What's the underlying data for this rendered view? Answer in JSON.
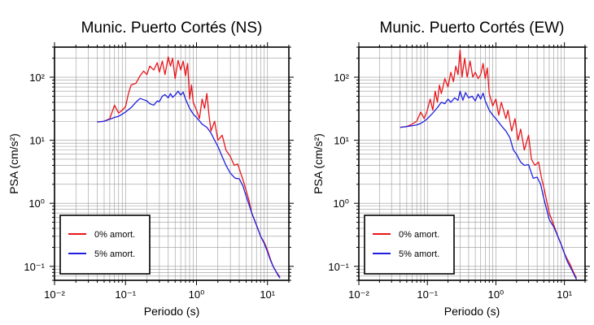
{
  "chart_data": [
    {
      "type": "line",
      "title": "Munic. Puerto Cortés (NS)",
      "xlabel": "Periodo (s)",
      "ylabel": "PSA (cm/s²)",
      "xscale": "log",
      "yscale": "log",
      "xlim": [
        0.01,
        20
      ],
      "ylim": [
        0.06,
        300
      ],
      "grid": true,
      "legend_position": "bottom-left",
      "x_tick_labels": [
        "10⁻²",
        "10⁻¹",
        "10⁰",
        "10¹"
      ],
      "y_tick_labels": [
        "10⁻¹",
        "10⁰",
        "10¹",
        "10²"
      ],
      "series": [
        {
          "name": "0% amort.",
          "color": "#e8161b",
          "points": [
            [
              0.04,
              19.5
            ],
            [
              0.05,
              20
            ],
            [
              0.06,
              22
            ],
            [
              0.07,
              36
            ],
            [
              0.08,
              27
            ],
            [
              0.09,
              30
            ],
            [
              0.1,
              34
            ],
            [
              0.11,
              55
            ],
            [
              0.12,
              75
            ],
            [
              0.14,
              80
            ],
            [
              0.16,
              105
            ],
            [
              0.18,
              125
            ],
            [
              0.2,
              110
            ],
            [
              0.22,
              150
            ],
            [
              0.25,
              130
            ],
            [
              0.28,
              170
            ],
            [
              0.3,
              120
            ],
            [
              0.33,
              180
            ],
            [
              0.36,
              110
            ],
            [
              0.4,
              210
            ],
            [
              0.43,
              150
            ],
            [
              0.46,
              200
            ],
            [
              0.5,
              95
            ],
            [
              0.55,
              185
            ],
            [
              0.6,
              130
            ],
            [
              0.65,
              180
            ],
            [
              0.7,
              105
            ],
            [
              0.75,
              165
            ],
            [
              0.8,
              45
            ],
            [
              0.85,
              75
            ],
            [
              0.9,
              40
            ],
            [
              1,
              30
            ],
            [
              1.1,
              22
            ],
            [
              1.2,
              45
            ],
            [
              1.3,
              32
            ],
            [
              1.4,
              55
            ],
            [
              1.5,
              25
            ],
            [
              1.6,
              14
            ],
            [
              1.8,
              20
            ],
            [
              2,
              10
            ],
            [
              2.3,
              12
            ],
            [
              2.6,
              7
            ],
            [
              3,
              5.5
            ],
            [
              3.4,
              4
            ],
            [
              3.8,
              4.2
            ],
            [
              4.2,
              3
            ],
            [
              4.6,
              2.2
            ],
            [
              5,
              1.6
            ],
            [
              5.5,
              1.1
            ],
            [
              6,
              0.7
            ],
            [
              7,
              0.45
            ],
            [
              8,
              0.3
            ],
            [
              9,
              0.24
            ],
            [
              10,
              0.18
            ],
            [
              11,
              0.13
            ],
            [
              12,
              0.1
            ],
            [
              13,
              0.085
            ],
            [
              14,
              0.075
            ],
            [
              15,
              0.068
            ]
          ]
        },
        {
          "name": "5% amort.",
          "color": "#1f1fe0",
          "points": [
            [
              0.04,
              19.5
            ],
            [
              0.05,
              20
            ],
            [
              0.06,
              21.5
            ],
            [
              0.07,
              23
            ],
            [
              0.08,
              24
            ],
            [
              0.09,
              26
            ],
            [
              0.1,
              28
            ],
            [
              0.12,
              33
            ],
            [
              0.14,
              40
            ],
            [
              0.16,
              46
            ],
            [
              0.18,
              44
            ],
            [
              0.2,
              42
            ],
            [
              0.22,
              38
            ],
            [
              0.25,
              36
            ],
            [
              0.28,
              42
            ],
            [
              0.3,
              41
            ],
            [
              0.33,
              50
            ],
            [
              0.36,
              53
            ],
            [
              0.4,
              47
            ],
            [
              0.43,
              55
            ],
            [
              0.46,
              48
            ],
            [
              0.5,
              52
            ],
            [
              0.55,
              60
            ],
            [
              0.6,
              52
            ],
            [
              0.65,
              58
            ],
            [
              0.7,
              45
            ],
            [
              0.8,
              32
            ],
            [
              0.9,
              26
            ],
            [
              1,
              23
            ],
            [
              1.2,
              18
            ],
            [
              1.4,
              16
            ],
            [
              1.6,
              13
            ],
            [
              1.8,
              10
            ],
            [
              2,
              8
            ],
            [
              2.3,
              5.5
            ],
            [
              2.6,
              4
            ],
            [
              3,
              3
            ],
            [
              3.5,
              2.5
            ],
            [
              4,
              2.45
            ],
            [
              4.5,
              1.9
            ],
            [
              5,
              1.3
            ],
            [
              5.5,
              0.95
            ],
            [
              6,
              0.7
            ],
            [
              7,
              0.45
            ],
            [
              8,
              0.3
            ],
            [
              9,
              0.23
            ],
            [
              10,
              0.17
            ],
            [
              11,
              0.125
            ],
            [
              12,
              0.1
            ],
            [
              13,
              0.085
            ],
            [
              14,
              0.073
            ],
            [
              15,
              0.065
            ]
          ]
        }
      ]
    },
    {
      "type": "line",
      "title": "Munic. Puerto Cortés (EW)",
      "xlabel": "Periodo (s)",
      "ylabel": "PSA (cm/s²)",
      "xscale": "log",
      "yscale": "log",
      "xlim": [
        0.01,
        20
      ],
      "ylim": [
        0.06,
        300
      ],
      "grid": true,
      "legend_position": "bottom-left",
      "x_tick_labels": [
        "10⁻²",
        "10⁻¹",
        "10⁰",
        "10¹"
      ],
      "y_tick_labels": [
        "10⁻¹",
        "10⁰",
        "10¹",
        "10²"
      ],
      "series": [
        {
          "name": "0% amort.",
          "color": "#e8161b",
          "points": [
            [
              0.04,
              16
            ],
            [
              0.05,
              16.5
            ],
            [
              0.06,
              18
            ],
            [
              0.07,
              20
            ],
            [
              0.08,
              28
            ],
            [
              0.09,
              22
            ],
            [
              0.1,
              30
            ],
            [
              0.11,
              45
            ],
            [
              0.12,
              30
            ],
            [
              0.13,
              60
            ],
            [
              0.14,
              40
            ],
            [
              0.15,
              75
            ],
            [
              0.16,
              55
            ],
            [
              0.18,
              95
            ],
            [
              0.2,
              70
            ],
            [
              0.22,
              120
            ],
            [
              0.24,
              85
            ],
            [
              0.26,
              150
            ],
            [
              0.28,
              110
            ],
            [
              0.3,
              270
            ],
            [
              0.32,
              100
            ],
            [
              0.35,
              200
            ],
            [
              0.38,
              100
            ],
            [
              0.42,
              180
            ],
            [
              0.46,
              100
            ],
            [
              0.5,
              120
            ],
            [
              0.55,
              95
            ],
            [
              0.6,
              110
            ],
            [
              0.65,
              165
            ],
            [
              0.7,
              95
            ],
            [
              0.75,
              140
            ],
            [
              0.8,
              55
            ],
            [
              0.9,
              35
            ],
            [
              1,
              45
            ],
            [
              1.1,
              25
            ],
            [
              1.2,
              40
            ],
            [
              1.4,
              22
            ],
            [
              1.5,
              30
            ],
            [
              1.7,
              14
            ],
            [
              1.9,
              22
            ],
            [
              2.1,
              10
            ],
            [
              2.3,
              15
            ],
            [
              2.6,
              7
            ],
            [
              3,
              12
            ],
            [
              3.3,
              5
            ],
            [
              3.7,
              4
            ],
            [
              4.2,
              4.5
            ],
            [
              4.6,
              2.6
            ],
            [
              5,
              1.8
            ],
            [
              5.5,
              1.1
            ],
            [
              6,
              0.7
            ],
            [
              7,
              0.45
            ],
            [
              8,
              0.3
            ],
            [
              9,
              0.22
            ],
            [
              10,
              0.16
            ],
            [
              11,
              0.13
            ],
            [
              12,
              0.11
            ],
            [
              13,
              0.09
            ],
            [
              14,
              0.075
            ],
            [
              15,
              0.066
            ]
          ]
        },
        {
          "name": "5% amort.",
          "color": "#1f1fe0",
          "points": [
            [
              0.04,
              16
            ],
            [
              0.05,
              16.5
            ],
            [
              0.06,
              17
            ],
            [
              0.07,
              17.5
            ],
            [
              0.08,
              18.5
            ],
            [
              0.09,
              20
            ],
            [
              0.1,
              22
            ],
            [
              0.12,
              27
            ],
            [
              0.14,
              33
            ],
            [
              0.16,
              40
            ],
            [
              0.18,
              38
            ],
            [
              0.2,
              45
            ],
            [
              0.22,
              40
            ],
            [
              0.25,
              47
            ],
            [
              0.28,
              43
            ],
            [
              0.3,
              60
            ],
            [
              0.33,
              43
            ],
            [
              0.36,
              57
            ],
            [
              0.4,
              47
            ],
            [
              0.45,
              50
            ],
            [
              0.5,
              42
            ],
            [
              0.55,
              54
            ],
            [
              0.6,
              45
            ],
            [
              0.65,
              56
            ],
            [
              0.7,
              42
            ],
            [
              0.8,
              30
            ],
            [
              0.9,
              25
            ],
            [
              1,
              22
            ],
            [
              1.2,
              17
            ],
            [
              1.4,
              14
            ],
            [
              1.6,
              11
            ],
            [
              1.8,
              7
            ],
            [
              2,
              6
            ],
            [
              2.3,
              4.5
            ],
            [
              2.6,
              4
            ],
            [
              3,
              4.1
            ],
            [
              3.5,
              2.5
            ],
            [
              4,
              2.6
            ],
            [
              4.5,
              2
            ],
            [
              5,
              1.2
            ],
            [
              5.5,
              0.8
            ],
            [
              6,
              0.55
            ],
            [
              7,
              0.42
            ],
            [
              8,
              0.3
            ],
            [
              9,
              0.22
            ],
            [
              10,
              0.16
            ],
            [
              11,
              0.12
            ],
            [
              12,
              0.1
            ],
            [
              13,
              0.085
            ],
            [
              14,
              0.072
            ],
            [
              15,
              0.062
            ]
          ]
        }
      ]
    }
  ]
}
